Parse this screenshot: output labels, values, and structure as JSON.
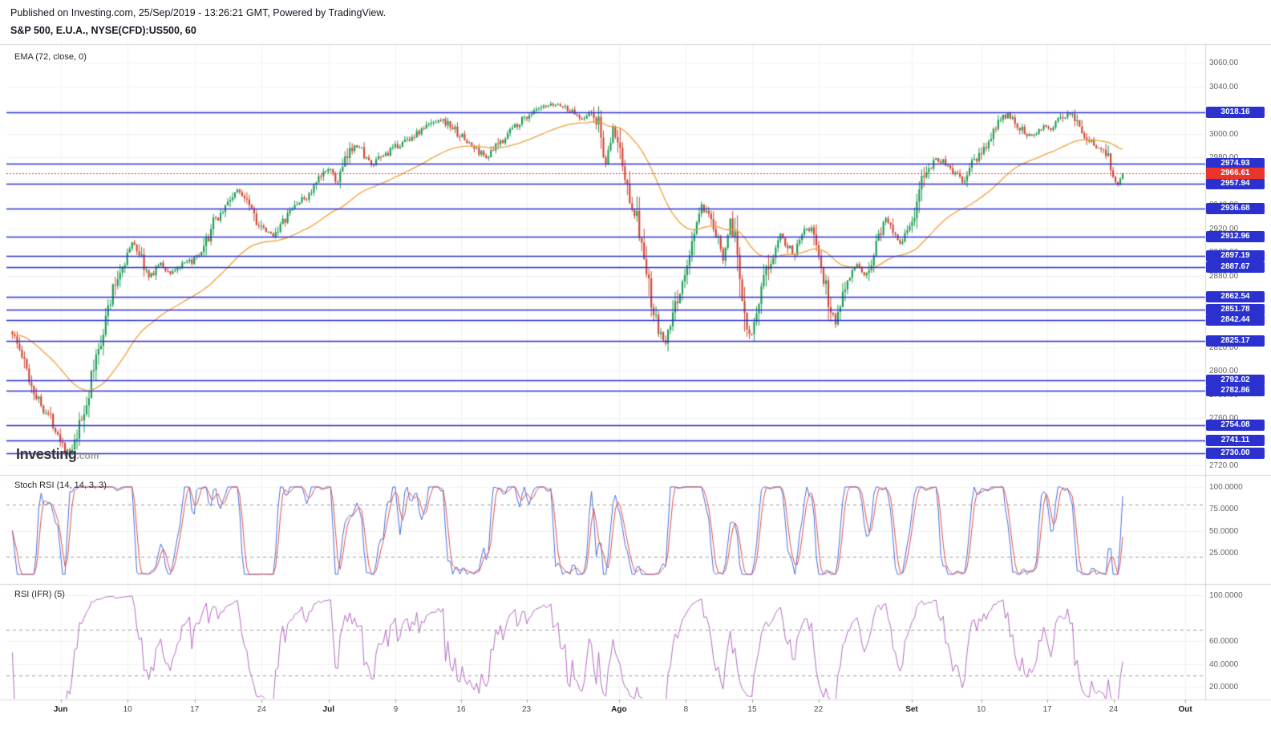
{
  "header": {
    "published_line": "Published on Investing.com, 25/Sep/2019 - 13:26:21 GMT, Powered by TradingView.",
    "symbol_line": "S&P 500, E.U.A., NYSE(CFD):US500, 60"
  },
  "watermark": {
    "brand": "Investing",
    "tld": ".com"
  },
  "chart_data": {
    "type": "candlestick",
    "symbol": "S&P 500, E.U.A., NYSE(CFD):US500, 60",
    "interval_minutes": 60,
    "current_price": 2966.61,
    "horizontal_levels": [
      3018.16,
      2974.93,
      2957.94,
      2936.68,
      2912.96,
      2897.19,
      2887.67,
      2862.54,
      2851.78,
      2842.44,
      2825.17,
      2792.02,
      2782.86,
      2754.08,
      2741.11,
      2730.0
    ],
    "y_axis": {
      "tick_min": 2720,
      "tick_max": 3060,
      "tick_step": 20,
      "price_min": 2712,
      "price_max": 3075
    },
    "x_axis": {
      "labels": [
        {
          "text": "Jun",
          "f": 0.0453,
          "major": true
        },
        {
          "text": "10",
          "f": 0.1013,
          "major": false
        },
        {
          "text": "17",
          "f": 0.1573,
          "major": false
        },
        {
          "text": "24",
          "f": 0.2133,
          "major": false
        },
        {
          "text": "Jul",
          "f": 0.2693,
          "major": true
        },
        {
          "text": "9",
          "f": 0.3253,
          "major": false
        },
        {
          "text": "16",
          "f": 0.38,
          "major": false
        },
        {
          "text": "23",
          "f": 0.4347,
          "major": false
        },
        {
          "text": "Ago",
          "f": 0.512,
          "major": true
        },
        {
          "text": "8",
          "f": 0.568,
          "major": false
        },
        {
          "text": "15",
          "f": 0.6233,
          "major": false
        },
        {
          "text": "22",
          "f": 0.6787,
          "major": false
        },
        {
          "text": "Set",
          "f": 0.7567,
          "major": true
        },
        {
          "text": "10",
          "f": 0.8147,
          "major": false
        },
        {
          "text": "17",
          "f": 0.87,
          "major": false
        },
        {
          "text": "24",
          "f": 0.9253,
          "major": false
        },
        {
          "text": "Out",
          "f": 0.9853,
          "major": true
        }
      ]
    },
    "data_end_fraction": 0.933,
    "price_path": [
      [
        0.005,
        2833
      ],
      [
        0.013,
        2812
      ],
      [
        0.021,
        2788
      ],
      [
        0.029,
        2771
      ],
      [
        0.036,
        2762
      ],
      [
        0.043,
        2748
      ],
      [
        0.049,
        2734
      ],
      [
        0.054,
        2728
      ],
      [
        0.059,
        2744
      ],
      [
        0.066,
        2769
      ],
      [
        0.073,
        2801
      ],
      [
        0.081,
        2837
      ],
      [
        0.089,
        2867
      ],
      [
        0.096,
        2887
      ],
      [
        0.106,
        2909
      ],
      [
        0.112,
        2897
      ],
      [
        0.119,
        2878
      ],
      [
        0.128,
        2891
      ],
      [
        0.136,
        2882
      ],
      [
        0.145,
        2888
      ],
      [
        0.154,
        2892
      ],
      [
        0.164,
        2898
      ],
      [
        0.172,
        2923
      ],
      [
        0.182,
        2937
      ],
      [
        0.192,
        2952
      ],
      [
        0.202,
        2946
      ],
      [
        0.212,
        2920
      ],
      [
        0.222,
        2914
      ],
      [
        0.232,
        2926
      ],
      [
        0.242,
        2941
      ],
      [
        0.252,
        2947
      ],
      [
        0.262,
        2962
      ],
      [
        0.269,
        2972
      ],
      [
        0.276,
        2958
      ],
      [
        0.284,
        2978
      ],
      [
        0.291,
        2992
      ],
      [
        0.298,
        2985
      ],
      [
        0.305,
        2972
      ],
      [
        0.313,
        2980
      ],
      [
        0.323,
        2987
      ],
      [
        0.333,
        2994
      ],
      [
        0.343,
        3000
      ],
      [
        0.352,
        3007
      ],
      [
        0.362,
        3013
      ],
      [
        0.372,
        3006
      ],
      [
        0.382,
        2996
      ],
      [
        0.392,
        2987
      ],
      [
        0.402,
        2980
      ],
      [
        0.412,
        2992
      ],
      [
        0.422,
        3004
      ],
      [
        0.432,
        3013
      ],
      [
        0.442,
        3019
      ],
      [
        0.452,
        3023
      ],
      [
        0.462,
        3025
      ],
      [
        0.472,
        3019
      ],
      [
        0.481,
        3013
      ],
      [
        0.488,
        3018
      ],
      [
        0.495,
        3008
      ],
      [
        0.501,
        2972
      ],
      [
        0.507,
        3004
      ],
      [
        0.513,
        2986
      ],
      [
        0.518,
        2956
      ],
      [
        0.524,
        2940
      ],
      [
        0.53,
        2915
      ],
      [
        0.535,
        2880
      ],
      [
        0.54,
        2850
      ],
      [
        0.546,
        2830
      ],
      [
        0.551,
        2823
      ],
      [
        0.557,
        2845
      ],
      [
        0.563,
        2869
      ],
      [
        0.569,
        2885
      ],
      [
        0.575,
        2919
      ],
      [
        0.581,
        2938
      ],
      [
        0.587,
        2928
      ],
      [
        0.593,
        2915
      ],
      [
        0.599,
        2896
      ],
      [
        0.605,
        2928
      ],
      [
        0.611,
        2898
      ],
      [
        0.617,
        2852
      ],
      [
        0.622,
        2829
      ],
      [
        0.628,
        2848
      ],
      [
        0.634,
        2878
      ],
      [
        0.64,
        2898
      ],
      [
        0.646,
        2917
      ],
      [
        0.652,
        2908
      ],
      [
        0.658,
        2898
      ],
      [
        0.664,
        2918
      ],
      [
        0.67,
        2922
      ],
      [
        0.676,
        2912
      ],
      [
        0.682,
        2882
      ],
      [
        0.688,
        2856
      ],
      [
        0.693,
        2840
      ],
      [
        0.699,
        2868
      ],
      [
        0.705,
        2882
      ],
      [
        0.711,
        2888
      ],
      [
        0.717,
        2880
      ],
      [
        0.723,
        2892
      ],
      [
        0.729,
        2915
      ],
      [
        0.735,
        2928
      ],
      [
        0.741,
        2920
      ],
      [
        0.747,
        2908
      ],
      [
        0.753,
        2918
      ],
      [
        0.759,
        2932
      ],
      [
        0.765,
        2958
      ],
      [
        0.771,
        2972
      ],
      [
        0.777,
        2979
      ],
      [
        0.783,
        2976
      ],
      [
        0.789,
        2970
      ],
      [
        0.795,
        2964
      ],
      [
        0.801,
        2958
      ],
      [
        0.807,
        2975
      ],
      [
        0.813,
        2981
      ],
      [
        0.819,
        2990
      ],
      [
        0.825,
        3002
      ],
      [
        0.831,
        3012
      ],
      [
        0.837,
        3016
      ],
      [
        0.843,
        3009
      ],
      [
        0.849,
        3004
      ],
      [
        0.855,
        2998
      ],
      [
        0.861,
        3003
      ],
      [
        0.867,
        3007
      ],
      [
        0.873,
        3004
      ],
      [
        0.879,
        3010
      ],
      [
        0.885,
        3016
      ],
      [
        0.89,
        3019
      ],
      [
        0.896,
        3008
      ],
      [
        0.902,
        2996
      ],
      [
        0.908,
        2992
      ],
      [
        0.914,
        2988
      ],
      [
        0.919,
        2984
      ],
      [
        0.924,
        2972
      ],
      [
        0.928,
        2956
      ],
      [
        0.931,
        2962
      ],
      [
        0.933,
        2966.6
      ]
    ],
    "overlays": {
      "ema": {
        "label": "EMA (72, close, 0)",
        "period": 72,
        "color": "#f0a13a"
      }
    },
    "indicators": {
      "stoch_rsi": {
        "label": "Stoch RSI (14, 14, 3, 3)",
        "params": [
          14,
          14,
          3,
          3
        ],
        "axis_ticks": [
          100,
          75,
          50,
          25
        ],
        "bands": [
          80,
          20
        ],
        "range": [
          0,
          100
        ],
        "colors": {
          "k": "#4b6ee0",
          "d": "#e0544e"
        }
      },
      "rsi": {
        "label": "RSI (IFR) (5)",
        "period": 5,
        "axis_ticks": [
          100,
          60,
          40,
          20
        ],
        "bands": [
          70,
          30
        ],
        "range": [
          0,
          100
        ],
        "color": "#b66cc4"
      }
    },
    "colors": {
      "up": "#1d9d51",
      "down": "#d24735",
      "level": "#2b31cf",
      "current": "#e8342c",
      "ema": "#f0a13a",
      "axis_text": "#656565"
    }
  }
}
